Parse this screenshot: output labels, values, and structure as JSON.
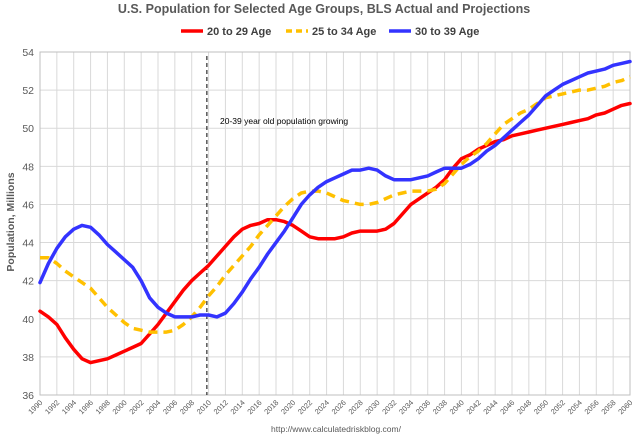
{
  "chart_data": {
    "type": "line",
    "title": "U.S. Population for Selected Age Groups, BLS Actual and Projections",
    "ylabel": "Population, Millions",
    "xlabel": "",
    "ylim": [
      36,
      54
    ],
    "yticks": [
      36,
      38,
      40,
      42,
      44,
      46,
      48,
      50,
      52,
      54
    ],
    "xlim": [
      1990,
      2060
    ],
    "xticks": [
      "1990",
      "1992",
      "1994",
      "1996",
      "1998",
      "2000",
      "2002",
      "2004",
      "2006",
      "2008",
      "2010",
      "2012",
      "2014",
      "2016",
      "2018",
      "2020",
      "2022",
      "2024",
      "2026",
      "2028",
      "2030",
      "2032",
      "2034",
      "2036",
      "2038",
      "2040",
      "2042",
      "2044",
      "2046",
      "2048",
      "2050",
      "2052",
      "2054",
      "2056",
      "2058",
      "2060"
    ],
    "grid": true,
    "legend_position": "top",
    "divider_year": 2009.8,
    "annotation": "20-39 year old population growing",
    "source": "http://www.calculatedriskblog.com/",
    "series": [
      {
        "name": "20 to 29 Age",
        "color": "#ff0000",
        "dash": "solid",
        "x": [
          1990,
          1991,
          1992,
          1993,
          1994,
          1995,
          1996,
          1997,
          1998,
          1999,
          2000,
          2001,
          2002,
          2003,
          2004,
          2005,
          2006,
          2007,
          2008,
          2009,
          2010,
          2011,
          2012,
          2013,
          2014,
          2015,
          2016,
          2017,
          2018,
          2019,
          2020,
          2021,
          2022,
          2023,
          2024,
          2025,
          2026,
          2027,
          2028,
          2029,
          2030,
          2031,
          2032,
          2033,
          2034,
          2035,
          2036,
          2037,
          2038,
          2039,
          2040,
          2041,
          2042,
          2043,
          2044,
          2045,
          2046,
          2047,
          2048,
          2049,
          2050,
          2051,
          2052,
          2053,
          2054,
          2055,
          2056,
          2057,
          2058,
          2059,
          2060
        ],
        "values": [
          40.4,
          40.1,
          39.7,
          39.0,
          38.4,
          37.9,
          37.7,
          37.8,
          37.9,
          38.1,
          38.3,
          38.5,
          38.7,
          39.2,
          39.7,
          40.3,
          40.9,
          41.5,
          42.0,
          42.4,
          42.8,
          43.3,
          43.8,
          44.3,
          44.7,
          44.9,
          45.0,
          45.2,
          45.2,
          45.1,
          44.9,
          44.6,
          44.3,
          44.2,
          44.2,
          44.2,
          44.3,
          44.5,
          44.6,
          44.6,
          44.6,
          44.7,
          45.0,
          45.5,
          46.0,
          46.3,
          46.6,
          46.9,
          47.3,
          47.9,
          48.4,
          48.6,
          48.9,
          49.1,
          49.3,
          49.4,
          49.6,
          49.7,
          49.8,
          49.9,
          50.0,
          50.1,
          50.2,
          50.3,
          50.4,
          50.5,
          50.7,
          50.8,
          51.0,
          51.2,
          51.3
        ]
      },
      {
        "name": "25 to 34 Age",
        "color": "#ffc000",
        "dash": "dashed",
        "x": [
          1990,
          1991,
          1992,
          1993,
          1994,
          1995,
          1996,
          1997,
          1998,
          1999,
          2000,
          2001,
          2002,
          2003,
          2004,
          2005,
          2006,
          2007,
          2008,
          2009,
          2010,
          2011,
          2012,
          2013,
          2014,
          2015,
          2016,
          2017,
          2018,
          2019,
          2020,
          2021,
          2022,
          2023,
          2024,
          2025,
          2026,
          2027,
          2028,
          2029,
          2030,
          2031,
          2032,
          2033,
          2034,
          2035,
          2036,
          2037,
          2038,
          2039,
          2040,
          2041,
          2042,
          2043,
          2044,
          2045,
          2046,
          2047,
          2048,
          2049,
          2050,
          2051,
          2052,
          2053,
          2054,
          2055,
          2056,
          2057,
          2058,
          2059,
          2060
        ],
        "values": [
          43.2,
          43.2,
          42.9,
          42.5,
          42.2,
          41.9,
          41.6,
          41.1,
          40.6,
          40.2,
          39.8,
          39.5,
          39.4,
          39.3,
          39.3,
          39.3,
          39.4,
          39.7,
          40.1,
          40.6,
          41.2,
          41.7,
          42.3,
          42.8,
          43.3,
          43.8,
          44.4,
          44.9,
          45.4,
          45.9,
          46.3,
          46.6,
          46.7,
          46.7,
          46.6,
          46.4,
          46.2,
          46.1,
          46.0,
          46.0,
          46.1,
          46.3,
          46.5,
          46.6,
          46.7,
          46.7,
          46.7,
          46.8,
          47.1,
          47.6,
          48.1,
          48.5,
          48.8,
          49.2,
          49.7,
          50.2,
          50.5,
          50.8,
          51.0,
          51.3,
          51.6,
          51.7,
          51.8,
          51.9,
          52.0,
          52.0,
          52.1,
          52.2,
          52.4,
          52.5,
          52.7
        ]
      },
      {
        "name": "30 to 39 Age",
        "color": "#3333ff",
        "dash": "solid",
        "x": [
          1990,
          1991,
          1992,
          1993,
          1994,
          1995,
          1996,
          1997,
          1998,
          1999,
          2000,
          2001,
          2002,
          2003,
          2004,
          2005,
          2006,
          2007,
          2008,
          2009,
          2010,
          2011,
          2012,
          2013,
          2014,
          2015,
          2016,
          2017,
          2018,
          2019,
          2020,
          2021,
          2022,
          2023,
          2024,
          2025,
          2026,
          2027,
          2028,
          2029,
          2030,
          2031,
          2032,
          2033,
          2034,
          2035,
          2036,
          2037,
          2038,
          2039,
          2040,
          2041,
          2042,
          2043,
          2044,
          2045,
          2046,
          2047,
          2048,
          2049,
          2050,
          2051,
          2052,
          2053,
          2054,
          2055,
          2056,
          2057,
          2058,
          2059,
          2060
        ],
        "values": [
          41.9,
          42.9,
          43.7,
          44.3,
          44.7,
          44.9,
          44.8,
          44.4,
          43.9,
          43.5,
          43.1,
          42.7,
          42.0,
          41.1,
          40.6,
          40.3,
          40.1,
          40.1,
          40.1,
          40.2,
          40.2,
          40.1,
          40.3,
          40.8,
          41.4,
          42.1,
          42.7,
          43.4,
          44.0,
          44.6,
          45.3,
          46.0,
          46.5,
          46.9,
          47.2,
          47.4,
          47.6,
          47.8,
          47.8,
          47.9,
          47.8,
          47.5,
          47.3,
          47.3,
          47.3,
          47.4,
          47.5,
          47.7,
          47.9,
          47.9,
          47.9,
          48.1,
          48.4,
          48.8,
          49.1,
          49.5,
          49.9,
          50.3,
          50.7,
          51.2,
          51.7,
          52.0,
          52.3,
          52.5,
          52.7,
          52.9,
          53.0,
          53.1,
          53.3,
          53.4,
          53.5
        ]
      }
    ]
  }
}
